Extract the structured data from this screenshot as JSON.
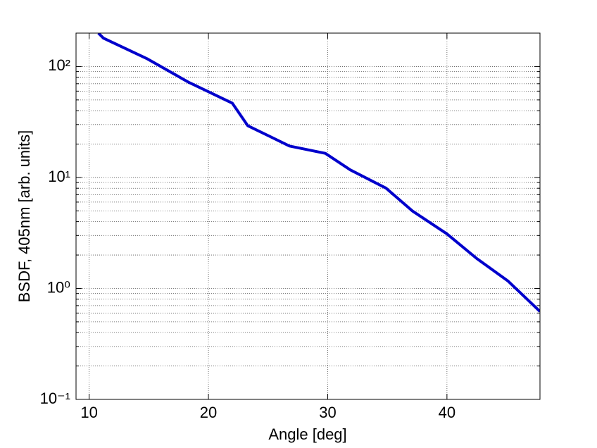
{
  "chart_data": {
    "type": "line",
    "x_label": "Angle [deg]",
    "y_label": "BSDF, 405nm [arb. units]",
    "x": [
      10.77,
      11.2,
      14.9,
      18.3,
      22.0,
      23.3,
      26.8,
      29.8,
      31.9,
      34.9,
      37.1,
      40.0,
      42.5,
      45.1,
      47.8
    ],
    "series": [
      {
        "name": "BSDF",
        "color": "#0000cc",
        "values": [
          200,
          180,
          117,
          72.5,
          46.8,
          29.3,
          19.2,
          16.5,
          11.7,
          8.0,
          5.0,
          3.1,
          1.86,
          1.17,
          0.62
        ]
      }
    ],
    "xlim": [
      8.9,
      47.8
    ],
    "xticks": [
      10,
      20,
      30,
      40
    ],
    "ylim": [
      0.1,
      200
    ],
    "y_log": true,
    "yticks": [
      {
        "value": 0.1,
        "label": "10⁻¹"
      },
      {
        "value": 1,
        "label": "10⁰"
      },
      {
        "value": 10,
        "label": "10¹"
      },
      {
        "value": 100,
        "label": "10²"
      }
    ],
    "grid": true,
    "minor_grid": true
  }
}
